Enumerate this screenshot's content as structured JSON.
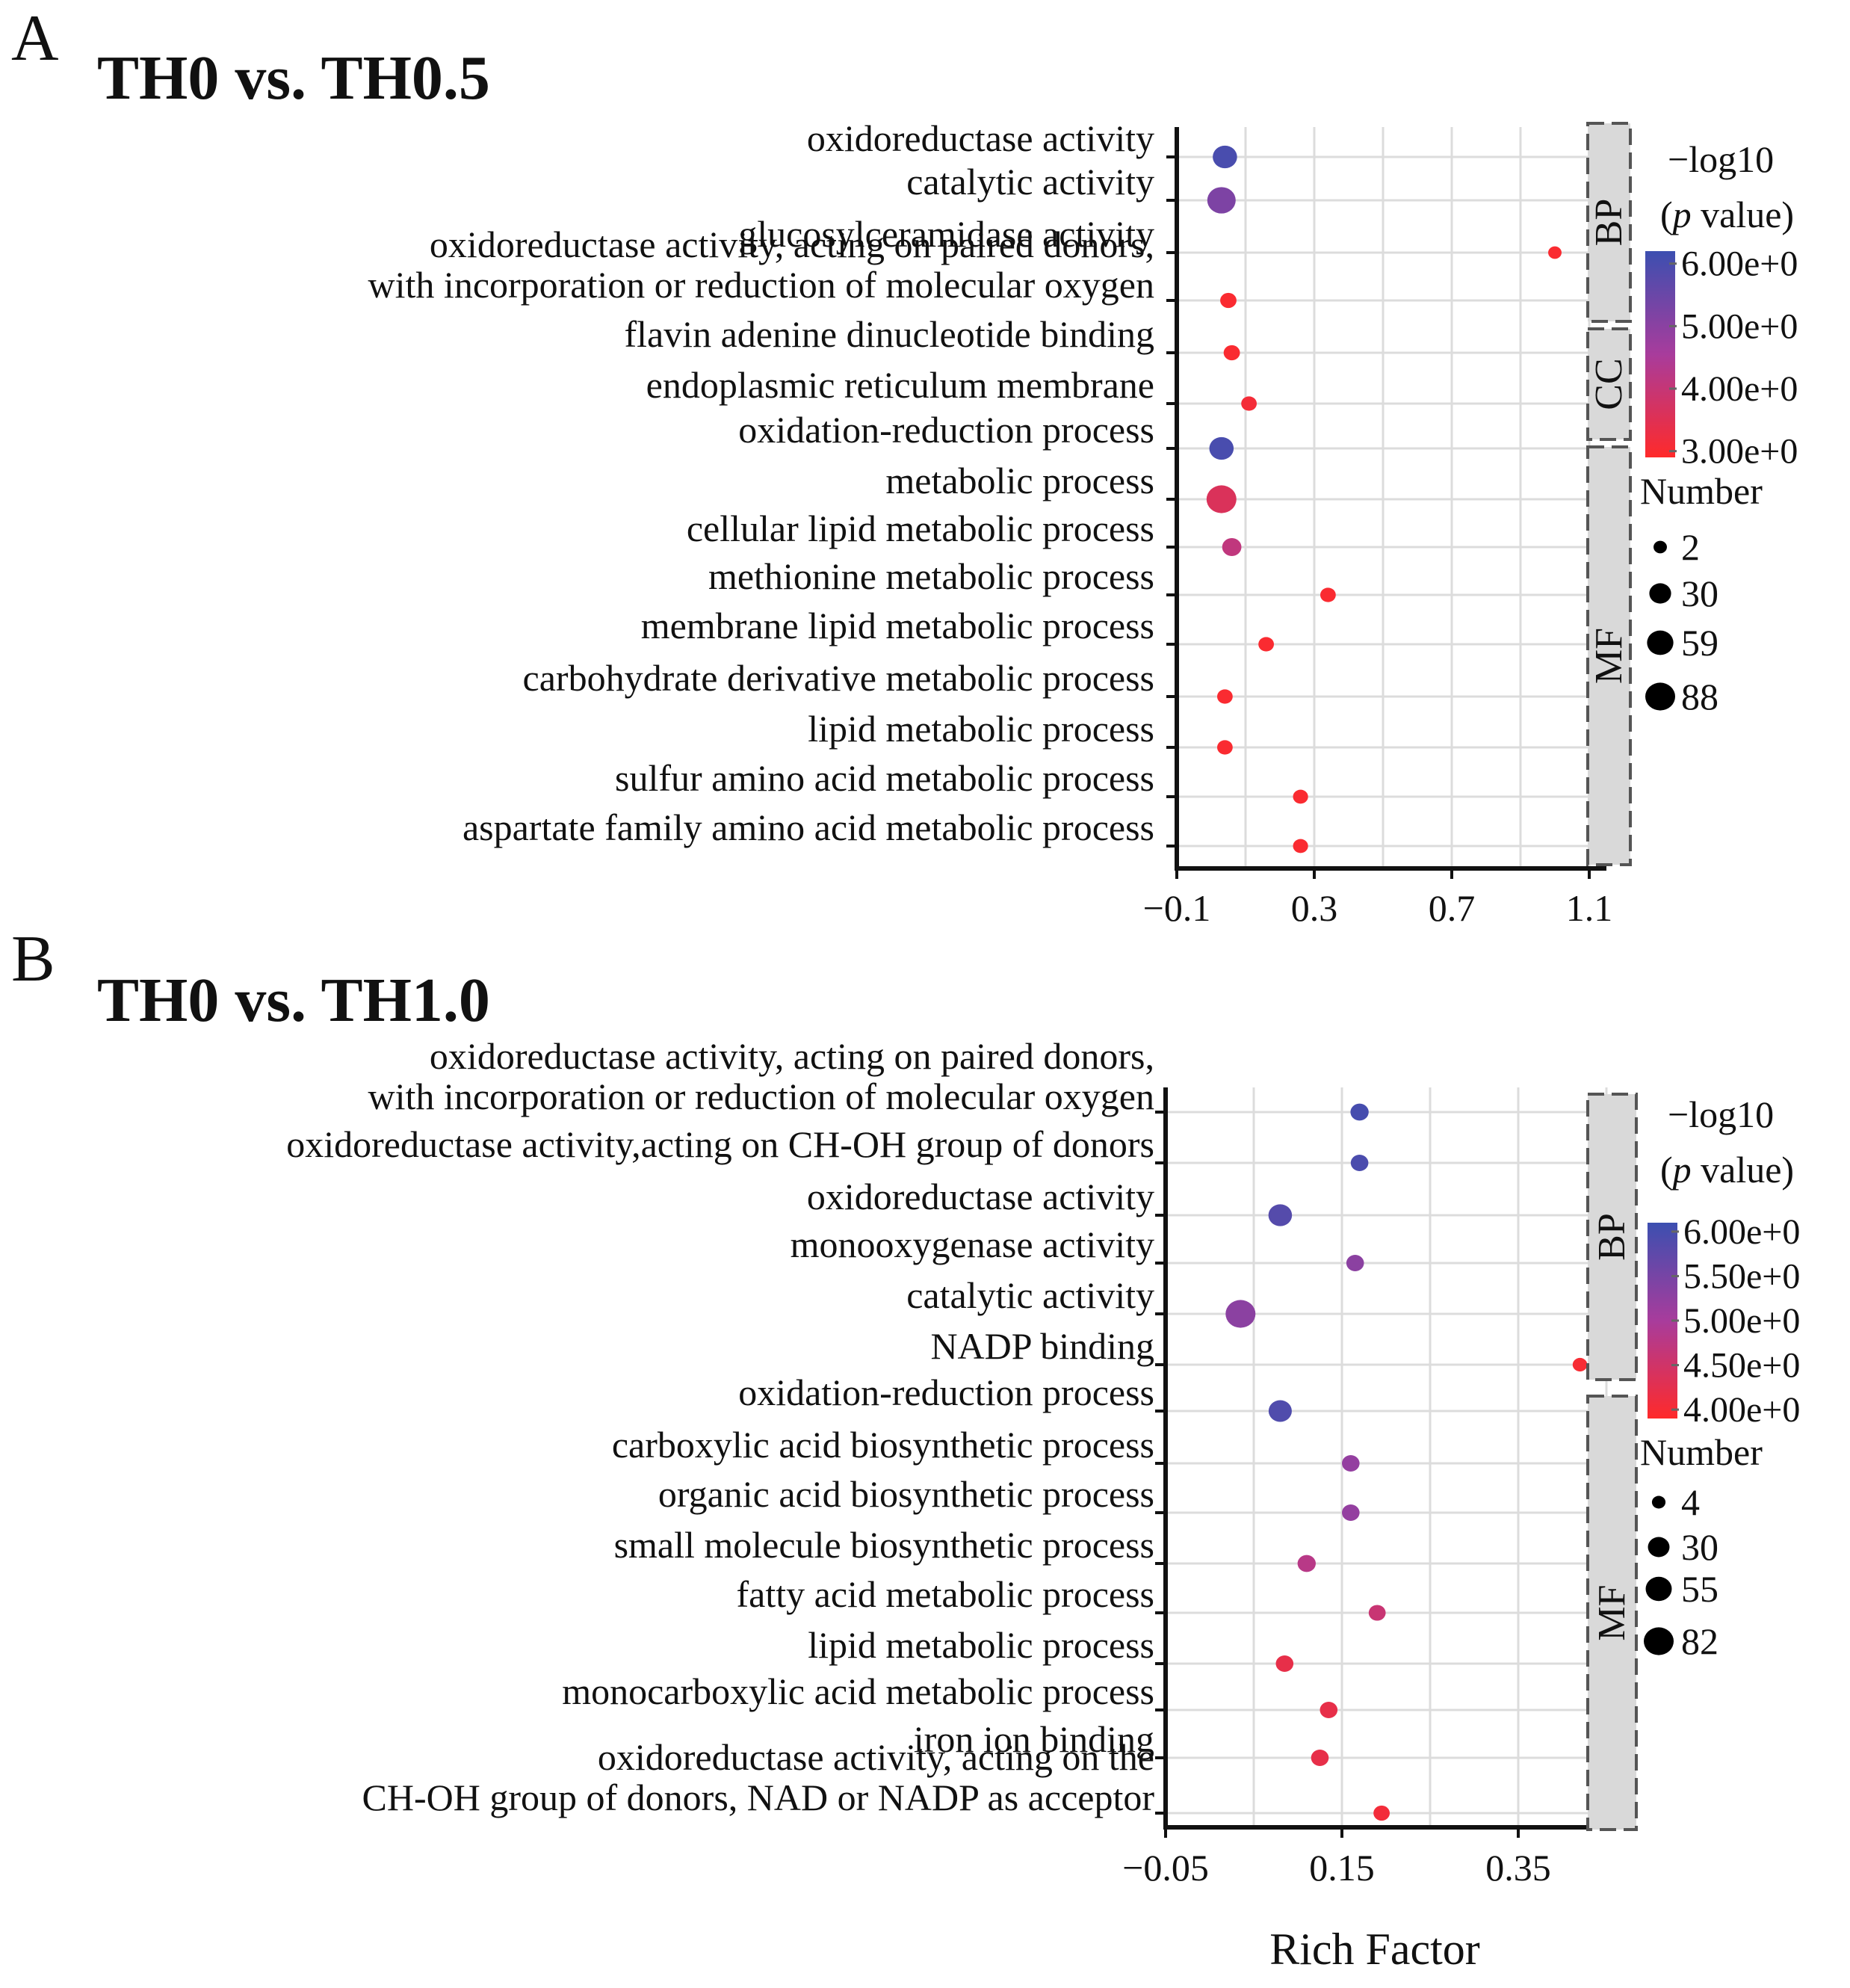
{
  "figure": {
    "xlabel": "Rich Factor"
  },
  "chart_data": [
    {
      "type": "scatter",
      "panel_letter": "A",
      "title": "TH0 vs. TH0.5",
      "xlabel": "",
      "xlim": [
        -0.1,
        1.15
      ],
      "xticks": [
        -0.1,
        0.3,
        0.7,
        1.1
      ],
      "xtick_labels": [
        "−0.1",
        "0.3",
        "0.7",
        "1.1"
      ],
      "grid": true,
      "color_legend": {
        "title_line1": "−log10",
        "title_p": "p",
        "title_rest": " value",
        "min": 2.9,
        "max": 6.2,
        "ticks": [
          6,
          5,
          4,
          3
        ],
        "tick_labels": [
          "6.00e+0",
          "5.00e+0",
          "4.00e+0",
          "3.00e+0"
        ],
        "low_color": "#ff2a2a",
        "mid_color": "#a83c9c",
        "high_color": "#3c4fb0"
      },
      "size_legend": {
        "title": "Number",
        "values": [
          2,
          30,
          59,
          88
        ],
        "labels": [
          "2",
          "30",
          "59",
          "88"
        ],
        "max": 88
      },
      "facets": [
        {
          "label": "BP",
          "from": 0,
          "to": 3
        },
        {
          "label": "CC",
          "from": 4,
          "to": 5
        },
        {
          "label": "MF",
          "from": 6,
          "to": 14
        }
      ],
      "terms": [
        {
          "label": [
            "oxidoreductase activity"
          ],
          "x": 0.04,
          "count": 45,
          "logp": 6.0
        },
        {
          "label": [
            "catalytic activity"
          ],
          "x": 0.03,
          "count": 75,
          "logp": 5.2
        },
        {
          "label": [
            "glucosylceramidase activity"
          ],
          "x": 1.0,
          "count": 2,
          "logp": 3.0
        },
        {
          "label": [
            "oxidoreductase activity, acting on paired donors,",
            "with incorporation or reduction of molecular oxygen"
          ],
          "x": 0.05,
          "count": 8,
          "logp": 3.0
        },
        {
          "label": [
            "flavin adenine dinucleotide binding"
          ],
          "x": 0.06,
          "count": 8,
          "logp": 3.0
        },
        {
          "label": [
            "endoplasmic reticulum membrane"
          ],
          "x": 0.11,
          "count": 6,
          "logp": 3.1
        },
        {
          "label": [
            "oxidation-reduction process"
          ],
          "x": 0.03,
          "count": 45,
          "logp": 6.0
        },
        {
          "label": [
            "metabolic process"
          ],
          "x": 0.03,
          "count": 88,
          "logp": 3.6
        },
        {
          "label": [
            "cellular lipid metabolic process"
          ],
          "x": 0.06,
          "count": 18,
          "logp": 4.1
        },
        {
          "label": [
            "methionine metabolic process"
          ],
          "x": 0.34,
          "count": 6,
          "logp": 3.0
        },
        {
          "label": [
            "membrane lipid metabolic process"
          ],
          "x": 0.16,
          "count": 6,
          "logp": 3.0
        },
        {
          "label": [
            "carbohydrate derivative metabolic process"
          ],
          "x": 0.04,
          "count": 6,
          "logp": 3.0
        },
        {
          "label": [
            "lipid metabolic process"
          ],
          "x": 0.04,
          "count": 6,
          "logp": 3.0
        },
        {
          "label": [
            "sulfur amino acid metabolic process"
          ],
          "x": 0.26,
          "count": 5,
          "logp": 3.0
        },
        {
          "label": [
            "aspartate family amino acid metabolic process"
          ],
          "x": 0.26,
          "count": 5,
          "logp": 3.0
        }
      ]
    },
    {
      "type": "scatter",
      "panel_letter": "B",
      "title": "TH0 vs. TH1.0",
      "xlabel": "Rich Factor",
      "xlim": [
        -0.05,
        0.45
      ],
      "xticks": [
        -0.05,
        0.15,
        0.35
      ],
      "xtick_labels": [
        "−0.05",
        "0.15",
        "0.35"
      ],
      "grid": true,
      "color_legend": {
        "title_line1": "−log10",
        "title_p": "p",
        "title_rest": " value",
        "min": 3.9,
        "max": 6.1,
        "ticks": [
          6.0,
          5.5,
          5.0,
          4.5,
          4.0
        ],
        "tick_labels": [
          "6.00e+0",
          "5.50e+0",
          "5.00e+0",
          "4.50e+0",
          "4.00e+0"
        ],
        "low_color": "#ff2a2a",
        "mid_color": "#a83c9c",
        "high_color": "#3c4fb0"
      },
      "size_legend": {
        "title": "Number",
        "values": [
          4,
          30,
          55,
          82
        ],
        "labels": [
          "4",
          "30",
          "55",
          "82"
        ],
        "max": 82
      },
      "facets": [
        {
          "label": "BP",
          "from": 0,
          "to": 5
        },
        {
          "label": "MF",
          "from": 6,
          "to": 14
        }
      ],
      "terms": [
        {
          "label": [
            "oxidoreductase activity, acting on paired donors,",
            "with incorporation or reduction of molecular oxygen"
          ],
          "x": 0.17,
          "count": 16,
          "logp": 6.0
        },
        {
          "label": [
            "oxidoreductase activity,acting on CH-OH group of donors"
          ],
          "x": 0.17,
          "count": 14,
          "logp": 5.95
        },
        {
          "label": [
            "oxidoreductase activity"
          ],
          "x": 0.08,
          "count": 40,
          "logp": 5.85
        },
        {
          "label": [
            "monooxygenase activity"
          ],
          "x": 0.165,
          "count": 14,
          "logp": 5.3
        },
        {
          "label": [
            "catalytic activity"
          ],
          "x": 0.035,
          "count": 82,
          "logp": 5.3
        },
        {
          "label": [
            "NADP binding"
          ],
          "x": 0.42,
          "count": 6,
          "logp": 4.0
        },
        {
          "label": [
            "oxidation-reduction process"
          ],
          "x": 0.08,
          "count": 38,
          "logp": 5.9
        },
        {
          "label": [
            "carboxylic acid biosynthetic process"
          ],
          "x": 0.16,
          "count": 14,
          "logp": 5.2
        },
        {
          "label": [
            "organic acid biosynthetic process"
          ],
          "x": 0.16,
          "count": 14,
          "logp": 5.2
        },
        {
          "label": [
            "small molecule biosynthetic process"
          ],
          "x": 0.11,
          "count": 16,
          "logp": 4.8
        },
        {
          "label": [
            "fatty acid metabolic process"
          ],
          "x": 0.19,
          "count": 12,
          "logp": 4.6
        },
        {
          "label": [
            "lipid metabolic process"
          ],
          "x": 0.085,
          "count": 14,
          "logp": 4.2
        },
        {
          "label": [
            "monocarboxylic acid metabolic process"
          ],
          "x": 0.135,
          "count": 14,
          "logp": 4.2
        },
        {
          "label": [
            "iron ion binding"
          ],
          "x": 0.125,
          "count": 14,
          "logp": 4.2
        },
        {
          "label": [
            "oxidoreductase activity, acting on the",
            "CH-OH group of donors, NAD or NADP as acceptor"
          ],
          "x": 0.195,
          "count": 10,
          "logp": 4.05
        }
      ]
    }
  ]
}
